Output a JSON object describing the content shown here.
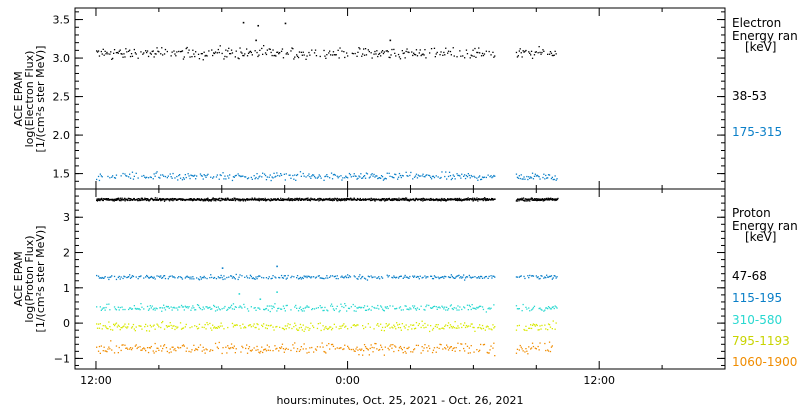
{
  "chart_data": {
    "type": "scatter",
    "xlabel": "hours:minutes, Oct. 25, 2021 - Oct. 26, 2021",
    "x_ticks": [
      "12:00",
      "0:00",
      "12:00"
    ],
    "x_range_hours": [
      -1,
      30
    ],
    "data_gap_hours": [
      19.0,
      20.0
    ],
    "data_end_hours": 22.0,
    "panels": [
      {
        "id": "electron",
        "instrument": "ACE EPAM",
        "ylabel": "log(Electron Flux)",
        "yunits": "[1/(cm²s ster MeV)]",
        "ylim": [
          1.3,
          3.65
        ],
        "y_ticks": [
          1.5,
          2.0,
          2.5,
          3.0,
          3.5
        ],
        "y_tick_labels": [
          "1.5",
          "2.0",
          "2.5",
          "3.0",
          "3.5"
        ],
        "legend_title": [
          "Electron",
          "Energy ran",
          "[keV]"
        ],
        "series": [
          {
            "name": "38-53",
            "color": "#000000",
            "mean": 3.07,
            "spread": 0.06,
            "outliers": [
              [
                7.0,
                3.47
              ],
              [
                7.7,
                3.43
              ],
              [
                9.0,
                3.46
              ],
              [
                7.6,
                3.24
              ],
              [
                14.0,
                3.24
              ]
            ]
          },
          {
            "name": "175-315",
            "color": "#0a7fc8",
            "mean": 1.47,
            "spread": 0.04,
            "outliers": []
          }
        ]
      },
      {
        "id": "proton",
        "instrument": "ACE EPAM",
        "ylabel": "log(Proton Flux)",
        "yunits": "[1/(cm²s ster MeV)]",
        "ylim": [
          -1.3,
          3.8
        ],
        "y_ticks": [
          -1,
          0,
          1,
          2,
          3
        ],
        "y_tick_labels": [
          "−1",
          "0",
          "1",
          "2",
          "3"
        ],
        "legend_title": [
          "Proton",
          "Energy ran",
          "[keV]"
        ],
        "series": [
          {
            "name": "47-68",
            "color": "#000000",
            "mean": 3.52,
            "spread": 0.03,
            "outliers": []
          },
          {
            "name": "115-195",
            "color": "#0a7fc8",
            "mean": 1.32,
            "spread": 0.05,
            "outliers": [
              [
                6.0,
                1.58
              ],
              [
                8.6,
                1.63
              ]
            ]
          },
          {
            "name": "310-580",
            "color": "#28d8d0",
            "mean": 0.45,
            "spread": 0.08,
            "outliers": [
              [
                7.8,
                0.7
              ],
              [
                6.8,
                0.85
              ],
              [
                8.6,
                0.9
              ]
            ]
          },
          {
            "name": "795-1193",
            "color": "#d8e800",
            "mean": -0.08,
            "spread": 0.1,
            "outliers": []
          },
          {
            "name": "1060-1900",
            "color": "#f08c00",
            "mean": -0.7,
            "spread": 0.13,
            "outliers": []
          }
        ]
      }
    ]
  }
}
